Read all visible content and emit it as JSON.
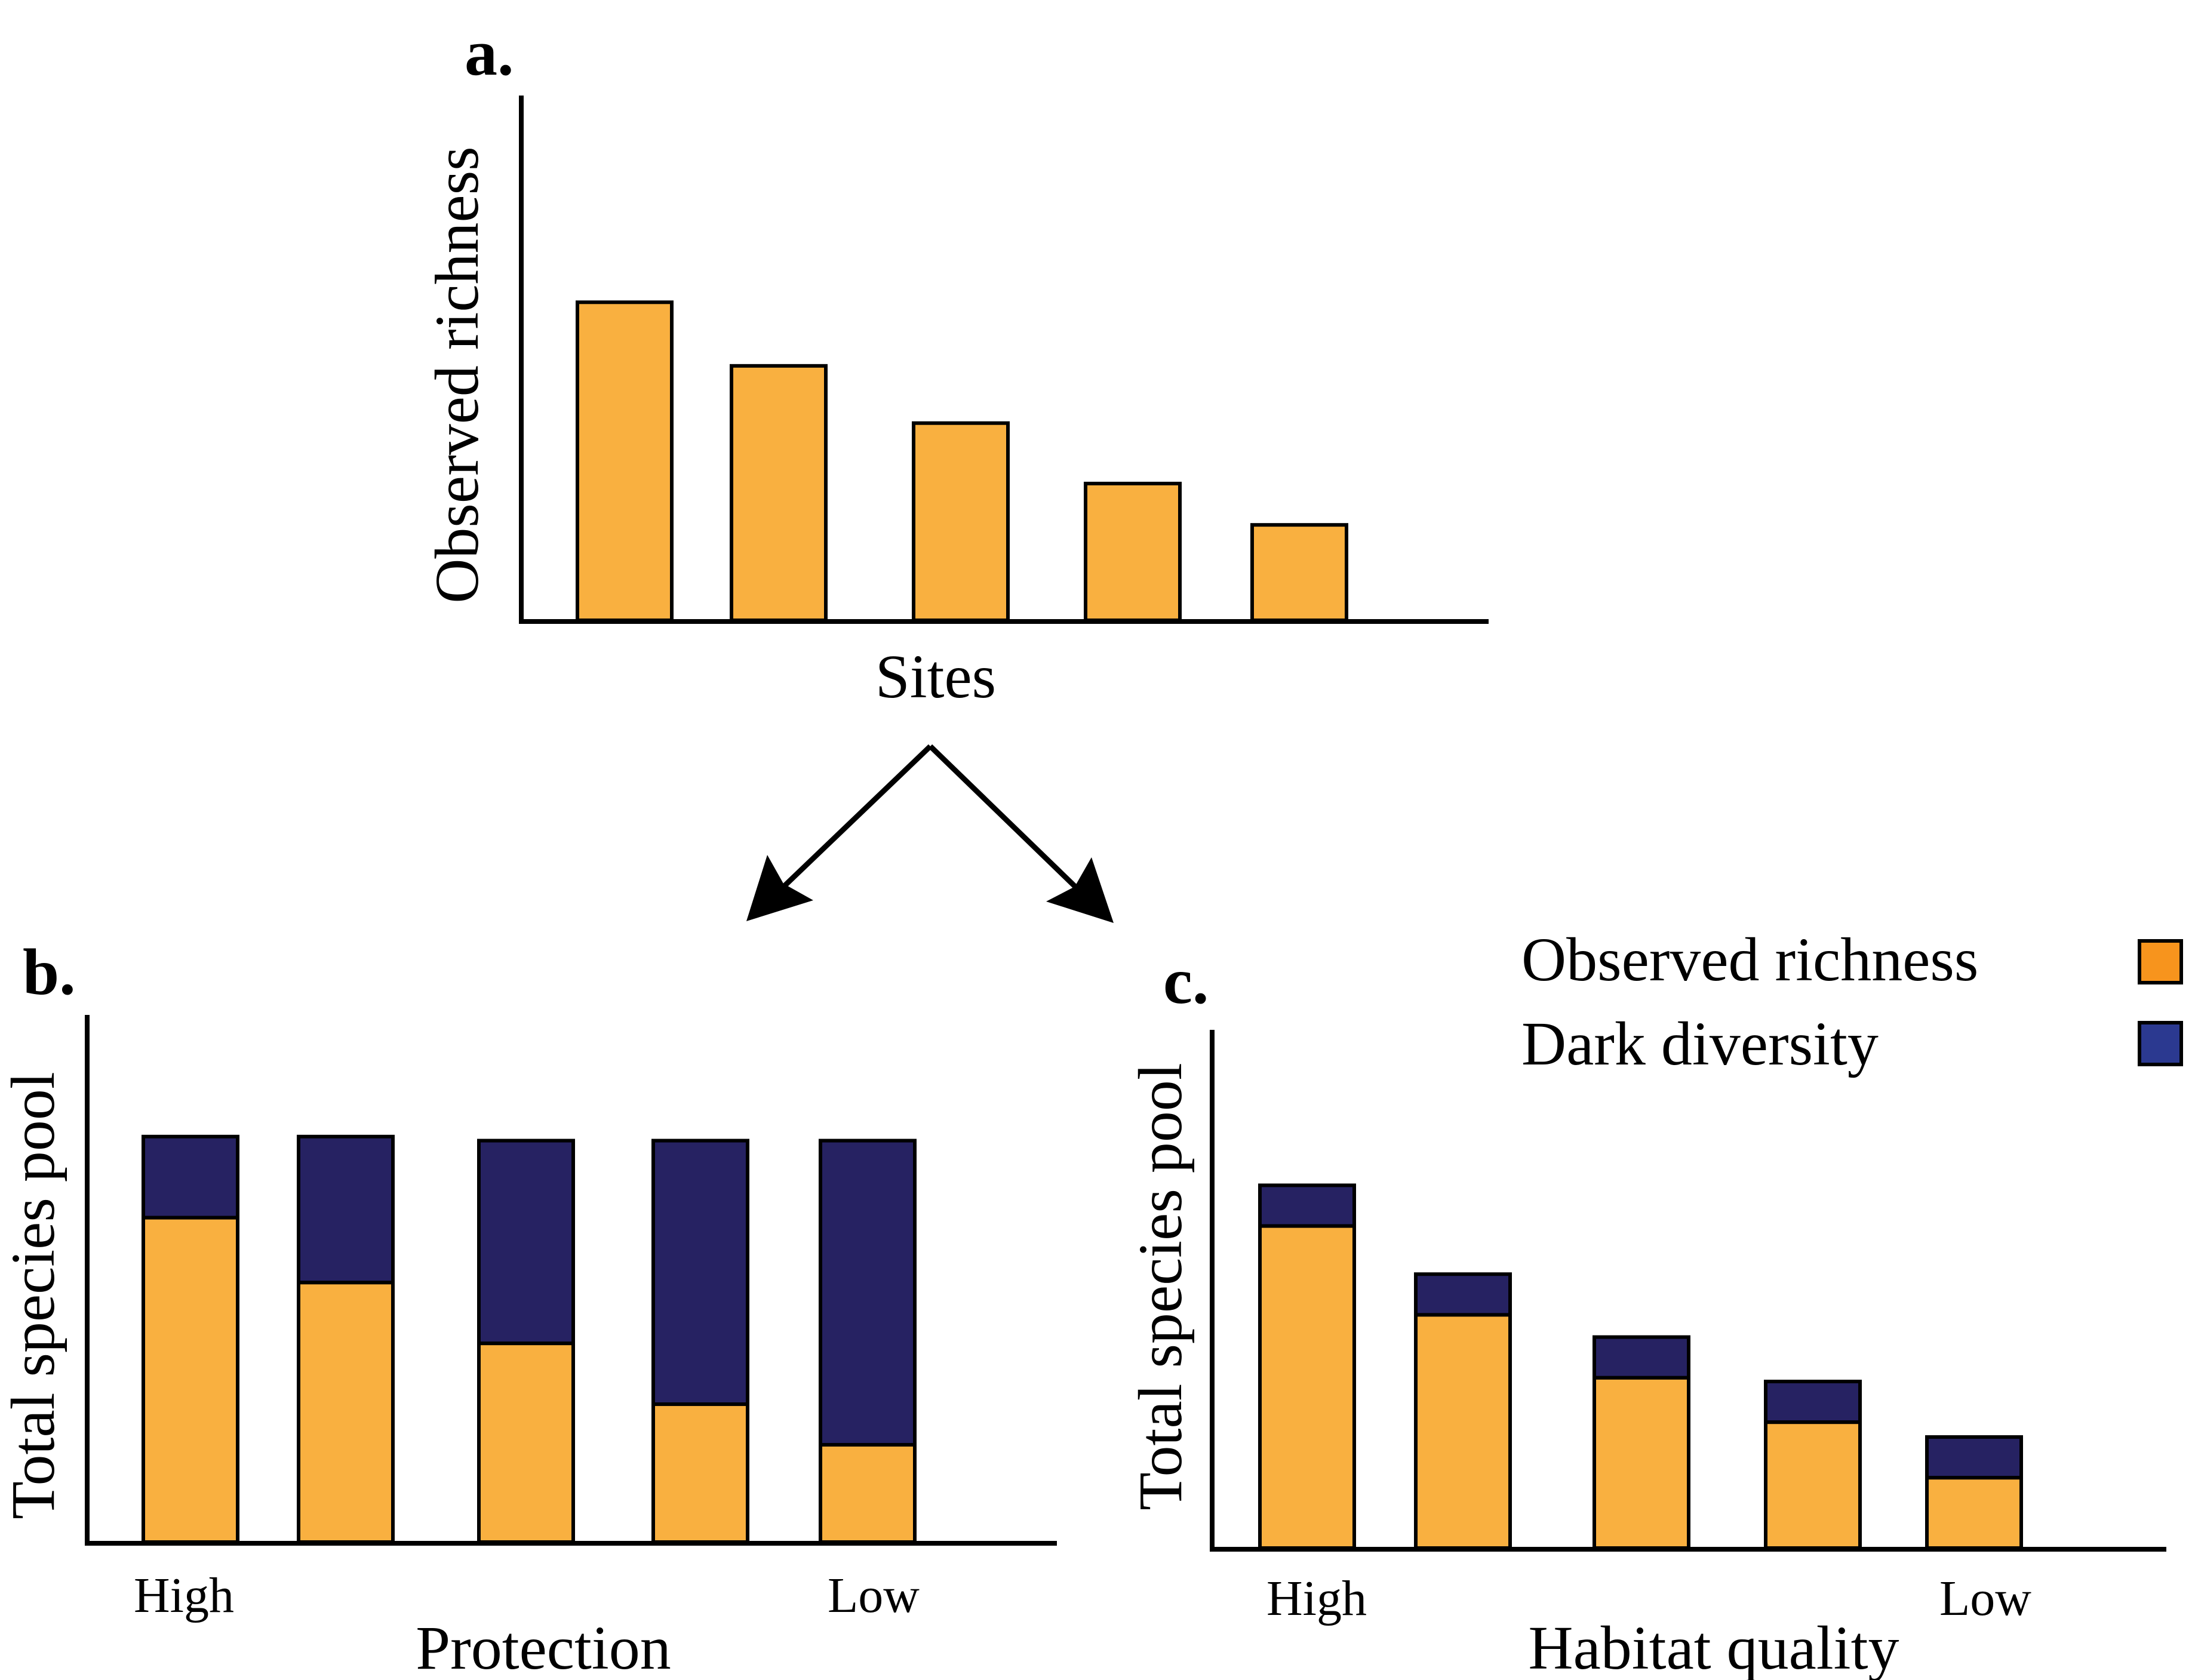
{
  "colors": {
    "observed": "#F9B040",
    "dark": "#262262",
    "legend_observed": "#F7941D",
    "legend_dark": "#2B3990",
    "outline": "#000000"
  },
  "panel_a": {
    "letter": "a.",
    "chart_data": {
      "type": "bar",
      "title": "",
      "xlabel": "Sites",
      "ylabel": "Observed richness",
      "categories": [
        "",
        "",
        "",
        "",
        ""
      ],
      "values": [
        100,
        80,
        62,
        43,
        30
      ],
      "ylim": [
        0,
        165
      ],
      "grid": false
    }
  },
  "panel_b": {
    "letter": "b.",
    "chart_data": {
      "type": "bar",
      "stacked": true,
      "title": "",
      "xlabel": "Protection",
      "ylabel": "Total species pool",
      "tick_labels": {
        "first": "High",
        "last": "Low"
      },
      "categories": [
        "",
        "",
        "",
        "",
        ""
      ],
      "series": [
        {
          "name": "Observed richness",
          "values": [
            80,
            64,
            49,
            34,
            24
          ]
        },
        {
          "name": "Dark diversity",
          "values": [
            20,
            36,
            50,
            65,
            75
          ]
        }
      ],
      "ylim": [
        0,
        130
      ],
      "grid": false
    }
  },
  "panel_c": {
    "letter": "c.",
    "chart_data": {
      "type": "bar",
      "stacked": true,
      "title": "",
      "xlabel": "Habitat quality",
      "ylabel": "Total species pool",
      "tick_labels": {
        "first": "High",
        "last": "Low"
      },
      "categories": [
        "",
        "",
        "",
        "",
        ""
      ],
      "series": [
        {
          "name": "Observed richness",
          "values": [
            87,
            63,
            46,
            34,
            19
          ]
        },
        {
          "name": "Dark diversity",
          "values": [
            11,
            11,
            11,
            11,
            11
          ]
        }
      ],
      "ylim": [
        0,
        140
      ],
      "grid": false
    }
  },
  "legend": {
    "placement": "top-right",
    "items": [
      {
        "label": "Observed richness",
        "color": "#F7941D"
      },
      {
        "label": "Dark diversity",
        "color": "#2B3990"
      }
    ]
  }
}
